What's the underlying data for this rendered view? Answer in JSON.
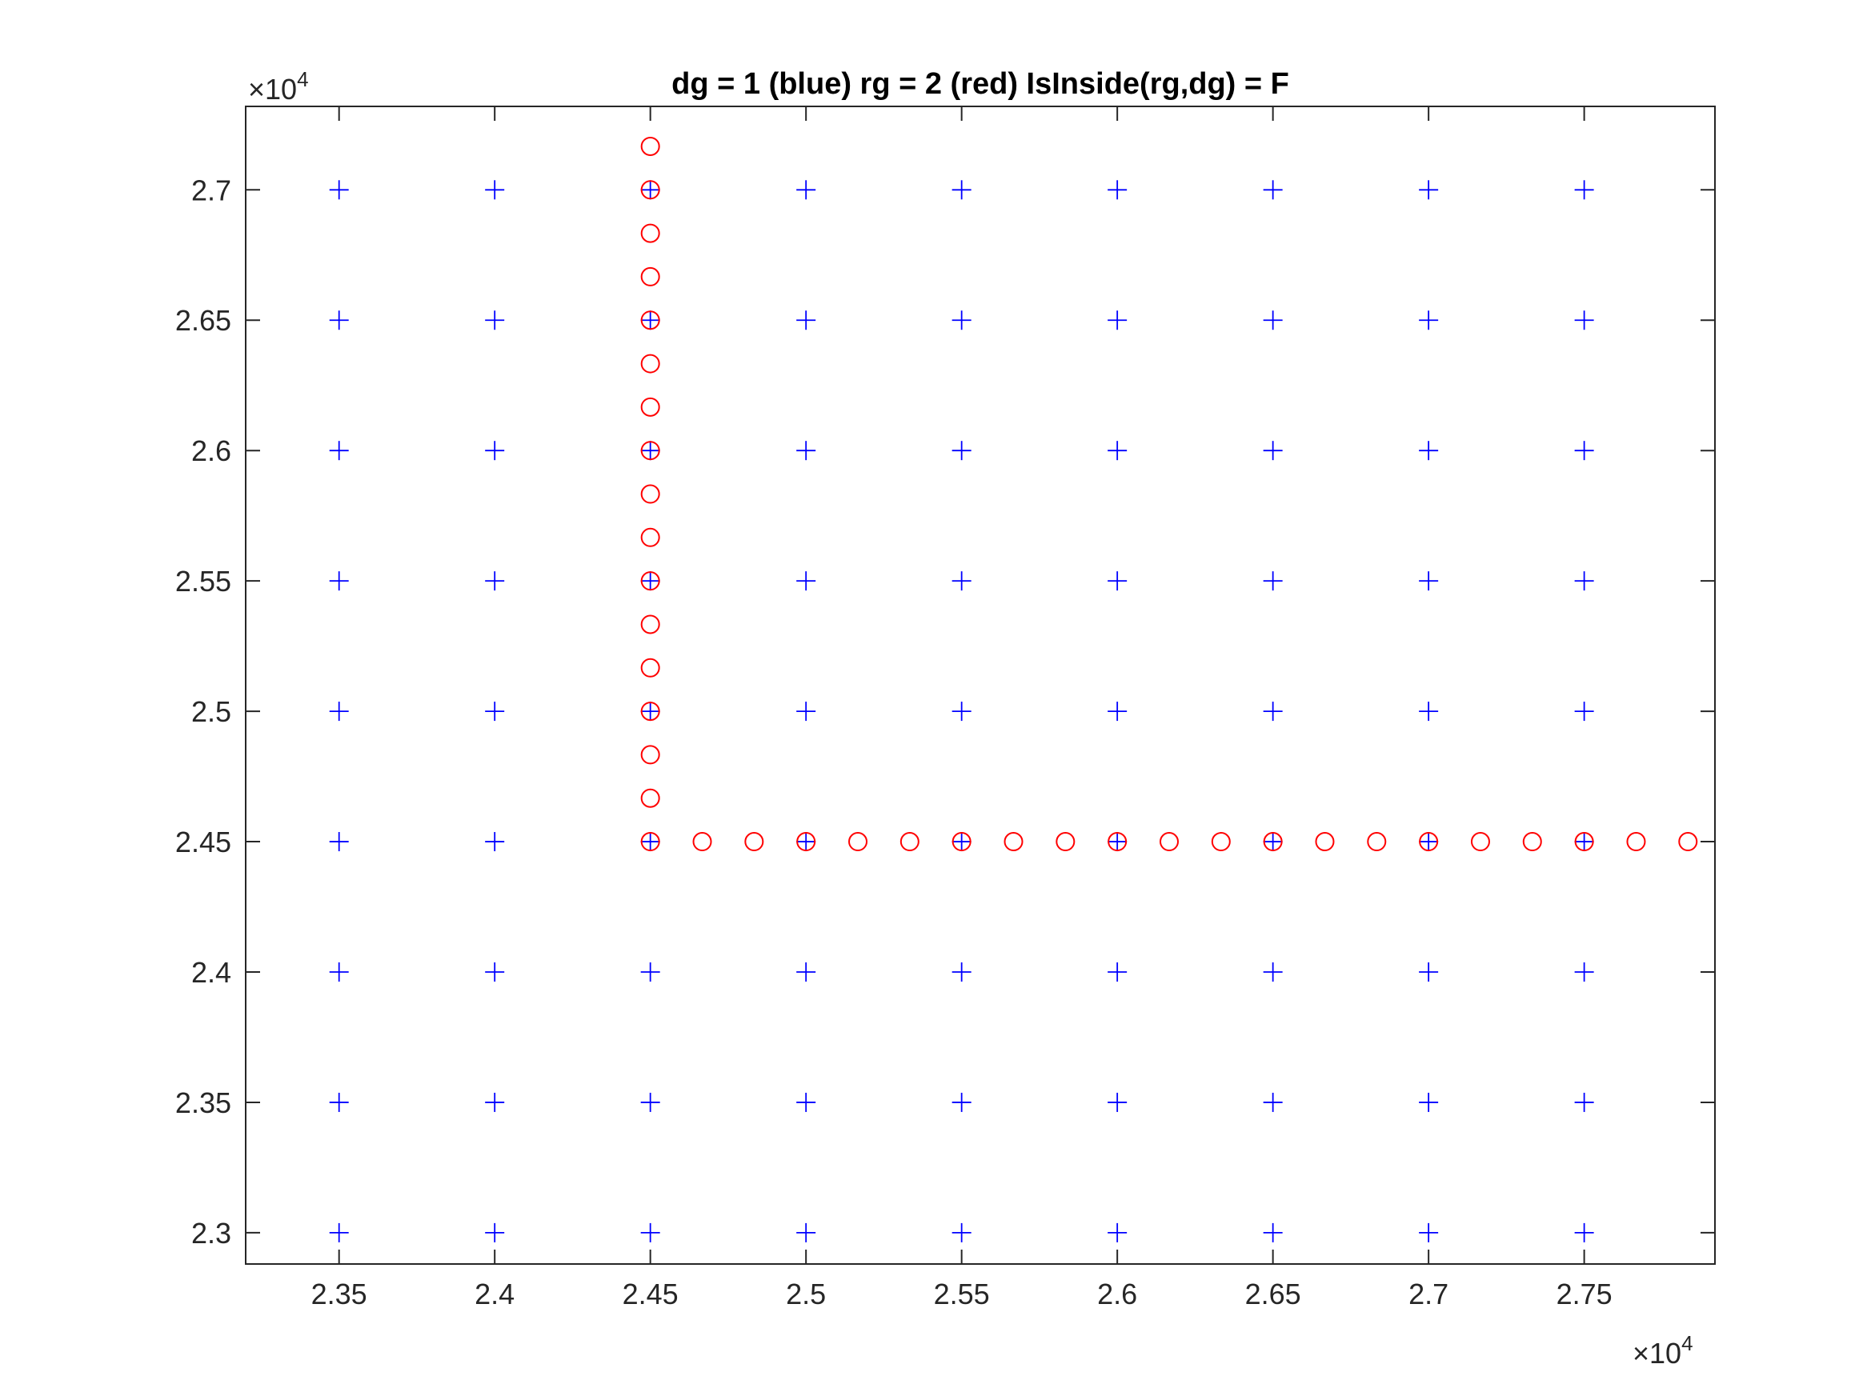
{
  "chart_data": {
    "type": "scatter",
    "title": "dg = 1  (blue)    rg = 2  (red)    IsInside(rg,dg) = F",
    "xlabel": "",
    "ylabel": "",
    "xlim": [
      23200,
      27920
    ],
    "ylim": [
      22880,
      27320
    ],
    "x_ticks": [
      23500,
      24000,
      24500,
      25000,
      25500,
      26000,
      26500,
      27000,
      27500
    ],
    "x_tick_labels": [
      "2.35",
      "2.4",
      "2.45",
      "2.5",
      "2.55",
      "2.6",
      "2.65",
      "2.7",
      "2.75"
    ],
    "y_ticks": [
      23000,
      23500,
      24000,
      24500,
      25000,
      25500,
      26000,
      26500,
      27000
    ],
    "y_tick_labels": [
      "2.3",
      "2.35",
      "2.4",
      "2.45",
      "2.5",
      "2.55",
      "2.6",
      "2.65",
      "2.7"
    ],
    "x_exponent_label": {
      "base": "×10",
      "power": "4"
    },
    "y_exponent_label": {
      "base": "×10",
      "power": "4"
    },
    "grid": false,
    "series": [
      {
        "marker": "plus",
        "color": "#0000ff",
        "grid_x": [
          23500,
          24000,
          24500,
          25000,
          25500,
          26000,
          26500,
          27000,
          27500
        ],
        "grid_y": [
          23000,
          23500,
          24000,
          24500,
          25000,
          25500,
          26000,
          26500,
          27000
        ]
      },
      {
        "marker": "circle",
        "color": "#ff0000",
        "points": [
          [
            24500,
            24500
          ],
          [
            24500,
            24666.7
          ],
          [
            24500,
            24833.3
          ],
          [
            24500,
            25000
          ],
          [
            24500,
            25166.7
          ],
          [
            24500,
            25333.3
          ],
          [
            24500,
            25500
          ],
          [
            24500,
            25666.7
          ],
          [
            24500,
            25833.3
          ],
          [
            24500,
            26000
          ],
          [
            24500,
            26166.7
          ],
          [
            24500,
            26333.3
          ],
          [
            24500,
            26500
          ],
          [
            24500,
            26666.7
          ],
          [
            24500,
            26833.3
          ],
          [
            24500,
            27000
          ],
          [
            24500,
            27166.7
          ],
          [
            24666.7,
            24500
          ],
          [
            24833.3,
            24500
          ],
          [
            25000,
            24500
          ],
          [
            25166.7,
            24500
          ],
          [
            25333.3,
            24500
          ],
          [
            25500,
            24500
          ],
          [
            25666.7,
            24500
          ],
          [
            25833.3,
            24500
          ],
          [
            26000,
            24500
          ],
          [
            26166.7,
            24500
          ],
          [
            26333.3,
            24500
          ],
          [
            26500,
            24500
          ],
          [
            26666.7,
            24500
          ],
          [
            26833.3,
            24500
          ],
          [
            27000,
            24500
          ],
          [
            27166.7,
            24500
          ],
          [
            27333.3,
            24500
          ],
          [
            27500,
            24500
          ],
          [
            27666.7,
            24500
          ],
          [
            27833.3,
            24500
          ]
        ]
      }
    ]
  }
}
